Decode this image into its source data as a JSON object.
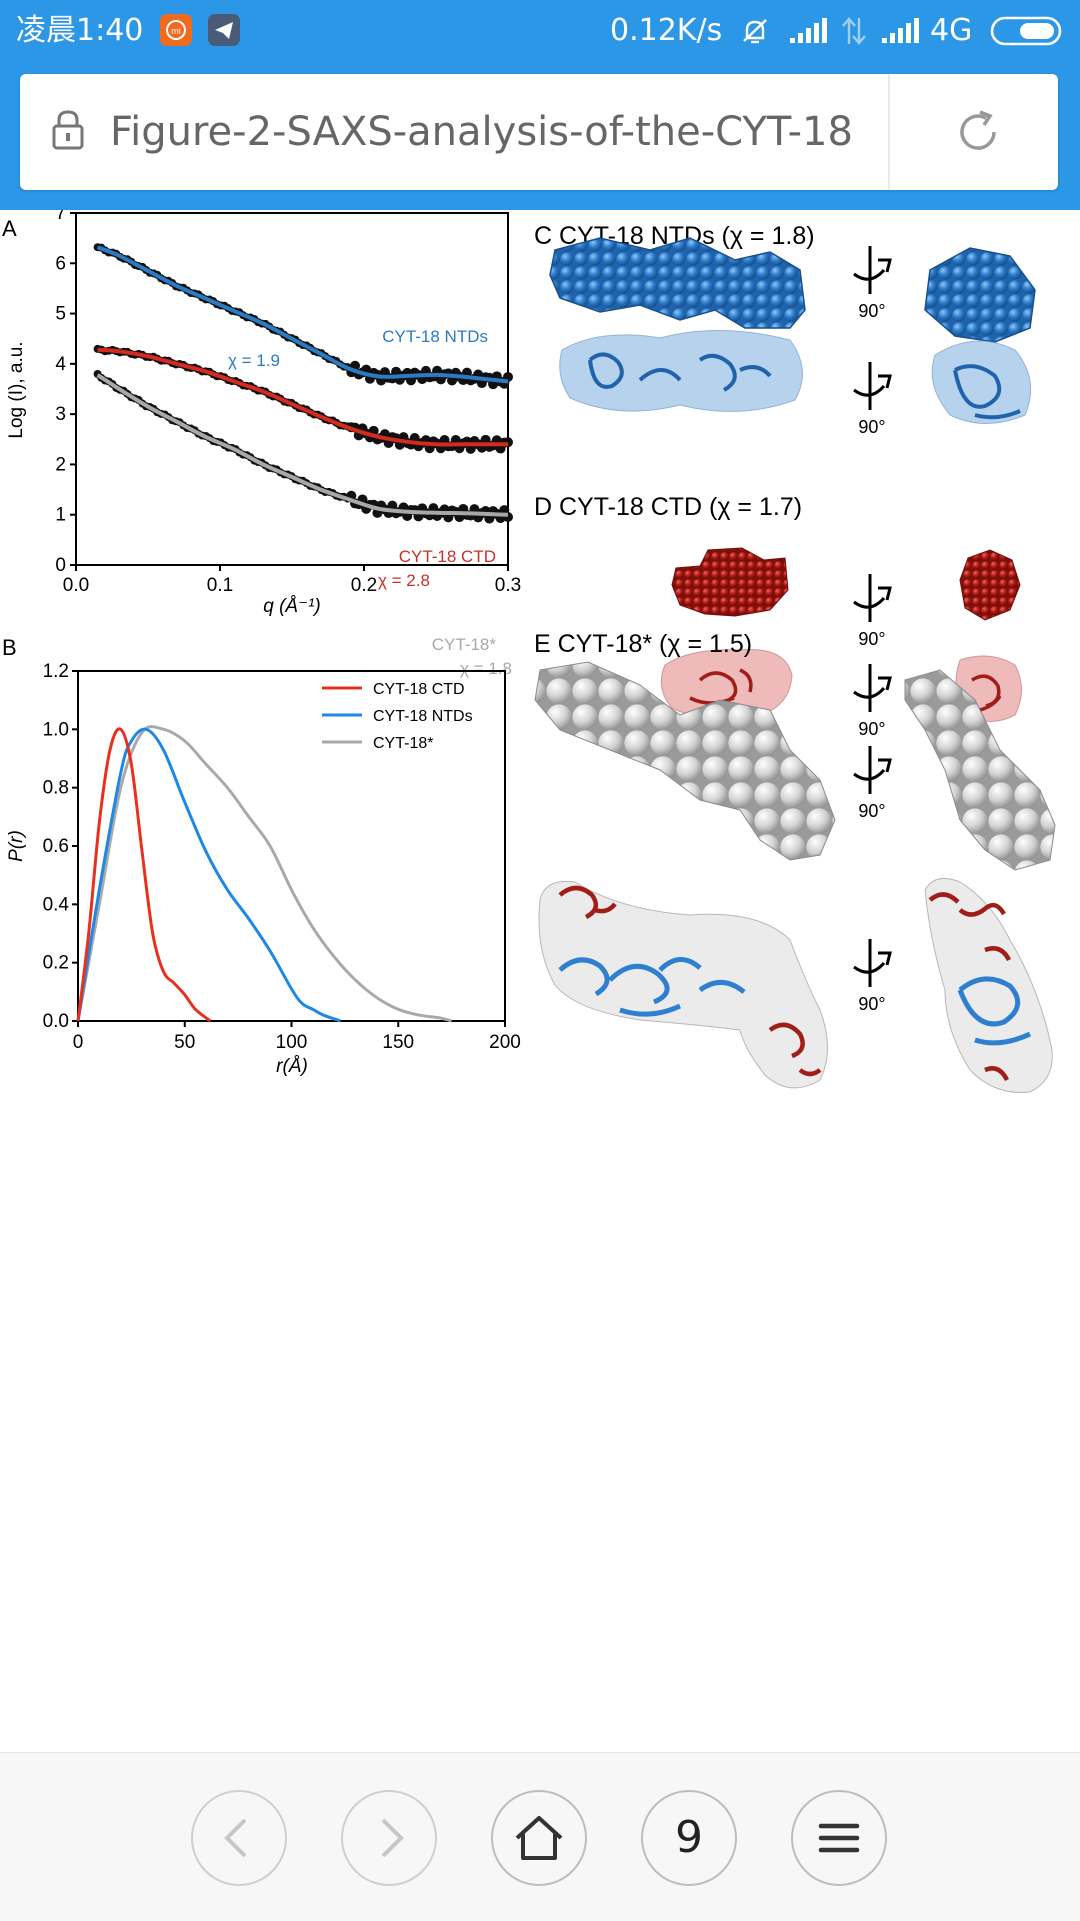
{
  "status_bar": {
    "time": "凌晨1:40",
    "net_speed": "0.12K/s",
    "network": "4G"
  },
  "address_bar": {
    "url": "Figure-2-SAXS-analysis-of-the-CYT-18"
  },
  "figure": {
    "panel_a_label": "A",
    "panel_b_label": "B",
    "panel_c_title": "C CYT-18 NTDs (χ = 1.8)",
    "panel_d_title": "D CYT-18 CTD (χ = 1.7)",
    "panel_e_title": "E CYT-18* (χ = 1.5)",
    "rotation_label": "90°"
  },
  "chart_data": [
    {
      "type": "line",
      "panel": "A",
      "xlabel": "q (Å⁻¹)",
      "ylabel": "Log (I), a.u.",
      "xlim": [
        0.0,
        0.3
      ],
      "ylim": [
        0,
        7
      ],
      "xticks": [
        "0.0",
        "0.1",
        "0.2",
        "0.3"
      ],
      "yticks": [
        "0",
        "1",
        "2",
        "3",
        "4",
        "5",
        "6",
        "7"
      ],
      "grid": false,
      "series": [
        {
          "name": "CYT-18 NTDs",
          "annotation": "χ = 1.9",
          "color": "#2b7bc4",
          "x": [
            0.015,
            0.03,
            0.05,
            0.07,
            0.09,
            0.11,
            0.13,
            0.15,
            0.17,
            0.19,
            0.21,
            0.23,
            0.25,
            0.27,
            0.29,
            0.3
          ],
          "y": [
            6.32,
            6.15,
            5.85,
            5.55,
            5.3,
            5.05,
            4.8,
            4.5,
            4.2,
            3.9,
            3.75,
            3.76,
            3.78,
            3.74,
            3.68,
            3.65
          ]
        },
        {
          "name": "CYT-18 CTD",
          "annotation": "χ = 2.8",
          "color": "#d42a20",
          "x": [
            0.015,
            0.03,
            0.05,
            0.07,
            0.09,
            0.11,
            0.13,
            0.15,
            0.17,
            0.19,
            0.21,
            0.23,
            0.25,
            0.27,
            0.29,
            0.3
          ],
          "y": [
            4.28,
            4.25,
            4.15,
            4.0,
            3.85,
            3.65,
            3.45,
            3.2,
            2.95,
            2.72,
            2.55,
            2.45,
            2.4,
            2.4,
            2.4,
            2.4
          ]
        },
        {
          "name": "CYT-18*",
          "annotation": "χ = 1.8",
          "color": "#a8a8a8",
          "x": [
            0.015,
            0.03,
            0.05,
            0.07,
            0.09,
            0.11,
            0.13,
            0.15,
            0.17,
            0.19,
            0.21,
            0.23,
            0.25,
            0.27,
            0.29,
            0.3
          ],
          "y": [
            3.78,
            3.5,
            3.15,
            2.85,
            2.55,
            2.3,
            2.0,
            1.75,
            1.5,
            1.3,
            1.12,
            1.06,
            1.04,
            1.03,
            1.01,
            1.0
          ]
        }
      ]
    },
    {
      "type": "line",
      "panel": "B",
      "xlabel": "r(Å)",
      "ylabel": "P(r)",
      "xlim": [
        0,
        200
      ],
      "ylim": [
        0.0,
        1.2
      ],
      "xticks": [
        "0",
        "50",
        "100",
        "150",
        "200"
      ],
      "yticks": [
        "0.0",
        "0.2",
        "0.4",
        "0.6",
        "0.8",
        "1.0",
        "1.2"
      ],
      "grid": false,
      "legend": "top-right",
      "series": [
        {
          "name": "CYT-18 CTD",
          "color": "#e8301c",
          "x": [
            0,
            5,
            10,
            15,
            20,
            25,
            30,
            35,
            40,
            45,
            50,
            55,
            62
          ],
          "y": [
            0,
            0.3,
            0.68,
            0.93,
            1.0,
            0.88,
            0.58,
            0.3,
            0.17,
            0.13,
            0.09,
            0.04,
            0
          ]
        },
        {
          "name": "CYT-18 NTDs",
          "color": "#1e88e5",
          "x": [
            0,
            10,
            20,
            25,
            32,
            40,
            50,
            60,
            70,
            80,
            90,
            100,
            105,
            110,
            115,
            123
          ],
          "y": [
            0,
            0.45,
            0.85,
            0.96,
            1.0,
            0.93,
            0.75,
            0.58,
            0.45,
            0.35,
            0.24,
            0.11,
            0.06,
            0.04,
            0.02,
            0
          ]
        },
        {
          "name": "CYT-18*",
          "color": "#a9a9a9",
          "x": [
            0,
            10,
            20,
            30,
            40,
            50,
            60,
            70,
            80,
            90,
            100,
            110,
            120,
            130,
            140,
            150,
            160,
            170,
            175
          ],
          "y": [
            0,
            0.4,
            0.8,
            0.99,
            1.0,
            0.96,
            0.88,
            0.8,
            0.7,
            0.6,
            0.45,
            0.32,
            0.22,
            0.14,
            0.08,
            0.04,
            0.02,
            0.01,
            0
          ]
        }
      ]
    }
  ]
}
